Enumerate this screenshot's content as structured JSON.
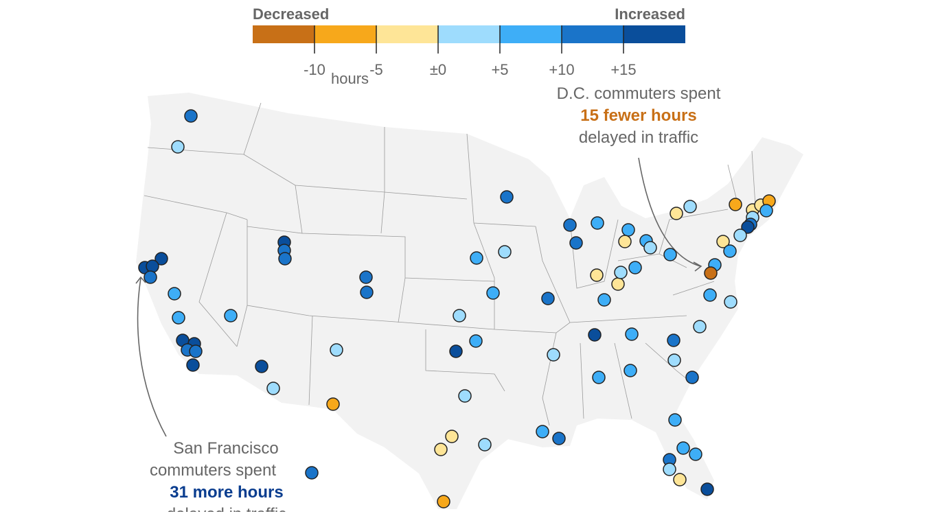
{
  "legend": {
    "left_label": "Decreased",
    "right_label": "Increased",
    "unit_label": "hours",
    "bins": [
      "< -10",
      "-10 to -5",
      "-5 to 0",
      "0 to +5",
      "+5 to +10",
      "+10 to +15",
      "> +15"
    ],
    "colors": [
      "#c87017",
      "#f7a81b",
      "#fee597",
      "#9edcfd",
      "#3eaef7",
      "#1a74c9",
      "#0a4e9b"
    ],
    "ticks": [
      "-10",
      "-5",
      "±0",
      "+5",
      "+10",
      "+15"
    ]
  },
  "annotations": {
    "dc": {
      "line1": "D.C. commuters spent",
      "highlight": "15 fewer hours",
      "line3": "delayed in traffic",
      "highlight_color": "#c87017"
    },
    "sf": {
      "line1": "San Francisco",
      "line2": "commuters spent",
      "highlight": "31 more hours",
      "line4": "delayed in traffic",
      "highlight_color": "#0a3d8f"
    }
  },
  "city_bins": [
    5,
    3,
    5,
    6,
    5,
    5,
    6,
    6,
    6,
    5,
    5,
    5,
    4,
    4,
    4,
    6,
    6,
    5,
    5,
    6,
    6,
    3,
    3,
    1,
    3,
    4,
    6,
    3,
    2,
    2,
    3,
    1,
    4,
    3,
    4,
    5,
    5,
    5,
    4,
    4,
    2,
    4,
    3,
    2,
    2,
    3,
    4,
    4,
    4,
    2,
    3,
    1,
    2,
    2,
    1,
    4,
    3,
    5,
    6,
    3,
    2,
    4,
    4,
    0,
    4,
    3,
    3,
    6,
    4,
    5,
    3,
    3,
    5,
    4,
    4,
    4,
    4,
    5,
    4,
    4,
    5,
    3,
    2,
    6
  ]
}
